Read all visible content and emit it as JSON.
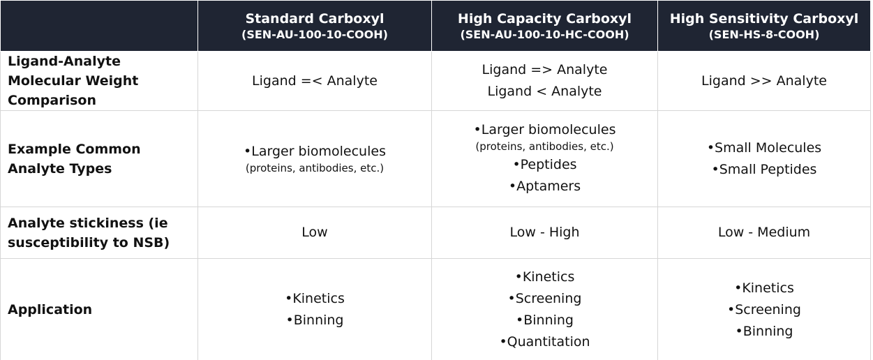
{
  "table": {
    "columns": [
      {
        "title": "Standard Carboxyl",
        "code": "(SEN-AU-100-10-COOH)"
      },
      {
        "title": "High Capacity Carboxyl",
        "code": "(SEN-AU-100-10-HC-COOH)"
      },
      {
        "title": "High Sensitivity Carboxyl",
        "code": "(SEN-HS-8-COOH)"
      }
    ],
    "rows": [
      {
        "label": "Ligand-Analyte Molecular Weight Comparison",
        "cells": [
          [
            "Ligand =< Analyte"
          ],
          [
            "Ligand => Analyte",
            "Ligand < Analyte"
          ],
          [
            "Ligand >> Analyte"
          ]
        ]
      },
      {
        "label": "Example Common Analyte Types",
        "cells": [
          [
            {
              "text": "•Larger biomolecules",
              "detail": "(proteins, antibodies, etc.)"
            }
          ],
          [
            {
              "text": "•Larger biomolecules",
              "detail": "(proteins, antibodies, etc.)"
            },
            "•Peptides",
            "•Aptamers"
          ],
          [
            "•Small Molecules",
            "•Small Peptides"
          ]
        ]
      },
      {
        "label": "Analyte stickiness (ie susceptibility to NSB)",
        "cells": [
          [
            "Low"
          ],
          [
            "Low - High"
          ],
          [
            "Low - Medium"
          ]
        ]
      },
      {
        "label": "Application",
        "cells": [
          [
            "•Kinetics",
            "•Binning"
          ],
          [
            "•Kinetics",
            "•Screening",
            "•Binning",
            "•Quantitation"
          ],
          [
            "•Kinetics",
            "•Screening",
            "•Binning"
          ]
        ]
      }
    ]
  }
}
